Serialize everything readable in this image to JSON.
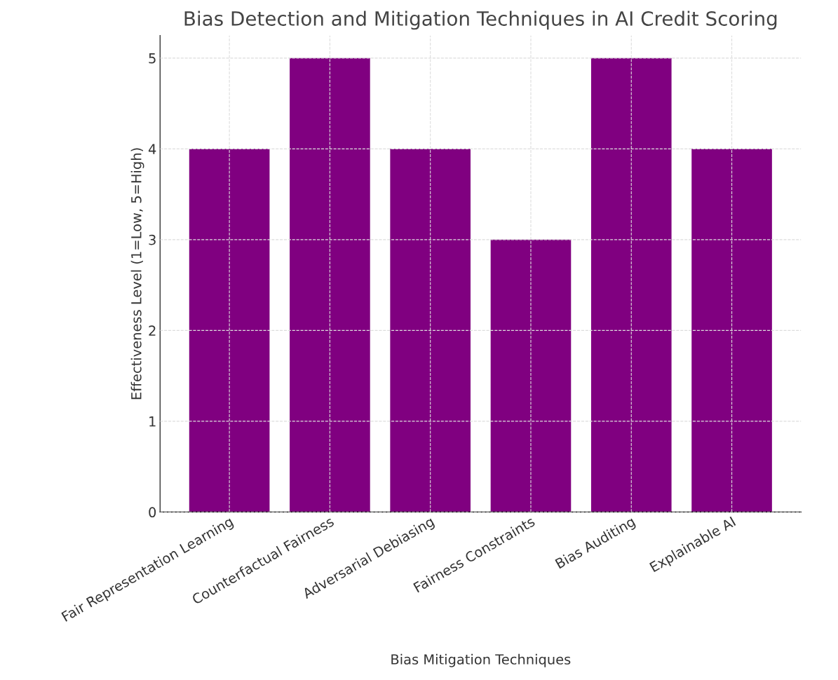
{
  "chart_data": {
    "type": "bar",
    "title": "Bias Detection and Mitigation Techniques in AI Credit Scoring",
    "xlabel": "Bias Mitigation Techniques",
    "ylabel": "Effectiveness Level (1=Low, 5=High)",
    "categories": [
      "Fair Representation Learning",
      "Counterfactual Fairness",
      "Adversarial Debiasing",
      "Fairness Constraints",
      "Bias Auditing",
      "Explainable AI"
    ],
    "values": [
      4,
      5,
      4,
      3,
      5,
      4
    ],
    "color": "#800080",
    "ylim": [
      0,
      5.25
    ],
    "yticks": [
      0,
      1,
      2,
      3,
      4,
      5
    ],
    "grid": true
  }
}
